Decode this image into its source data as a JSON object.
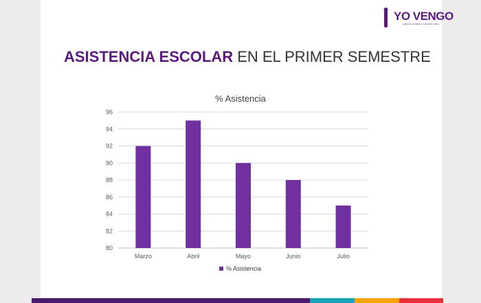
{
  "logo": {
    "text": "YO VENGO",
    "tagline": "CADA DÍA CUENTA / CADA DÍA SUMA"
  },
  "slide_title": {
    "bold": "ASISTENCIA ESCOLAR",
    "rest": " EN EL PRIMER SEMESTRE"
  },
  "chart_data": {
    "type": "bar",
    "title": "% Asistencia",
    "categories": [
      "Marzo",
      "Abril",
      "Mayo",
      "Junio",
      "Julio"
    ],
    "series": [
      {
        "name": "% Asistencia",
        "values": [
          92,
          95,
          90,
          88,
          85
        ]
      }
    ],
    "ylim": [
      80,
      96
    ],
    "yticks": [
      80,
      82,
      84,
      86,
      88,
      90,
      92,
      94,
      96
    ],
    "grid": true,
    "legend": "bottom",
    "color": "#7030a0"
  },
  "colors": {
    "brand": "#5b1a7e",
    "bar": "#7030a0",
    "strip": [
      "#4a1a6b",
      "#1aa3b5",
      "#f4a300",
      "#e8313f"
    ]
  }
}
